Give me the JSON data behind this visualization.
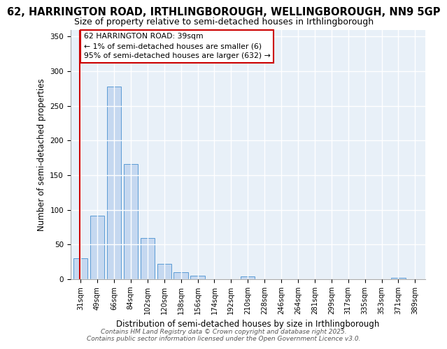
{
  "title_line1": "62, HARRINGTON ROAD, IRTHLINGBOROUGH, WELLINGBOROUGH, NN9 5GP",
  "title_line2": "Size of property relative to semi-detached houses in Irthlingborough",
  "xlabel": "Distribution of semi-detached houses by size in Irthlingborough",
  "ylabel": "Number of semi-detached properties",
  "categories": [
    "31sqm",
    "49sqm",
    "66sqm",
    "84sqm",
    "102sqm",
    "120sqm",
    "138sqm",
    "156sqm",
    "174sqm",
    "192sqm",
    "210sqm",
    "228sqm",
    "246sqm",
    "264sqm",
    "281sqm",
    "299sqm",
    "317sqm",
    "335sqm",
    "353sqm",
    "371sqm",
    "389sqm"
  ],
  "values": [
    30,
    92,
    278,
    166,
    59,
    22,
    10,
    5,
    0,
    0,
    4,
    0,
    0,
    0,
    0,
    0,
    0,
    0,
    0,
    2,
    0
  ],
  "bar_color": "#c5d8f0",
  "bar_edge_color": "#5b9bd5",
  "vline_color": "#cc0000",
  "annotation_text": "62 HARRINGTON ROAD: 39sqm\n← 1% of semi-detached houses are smaller (6)\n95% of semi-detached houses are larger (632) →",
  "ylim": [
    0,
    360
  ],
  "yticks": [
    0,
    50,
    100,
    150,
    200,
    250,
    300,
    350
  ],
  "background_color": "#e8f0f8",
  "grid_color": "#ffffff",
  "footer_line1": "Contains HM Land Registry data © Crown copyright and database right 2025.",
  "footer_line2": "Contains public sector information licensed under the Open Government Licence v3.0."
}
